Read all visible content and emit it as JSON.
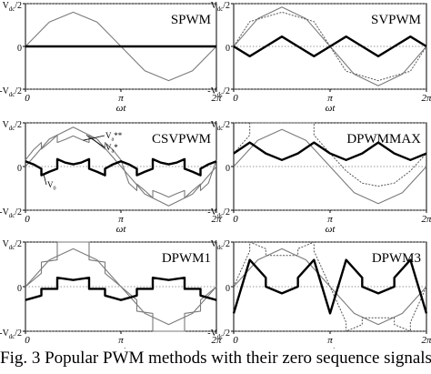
{
  "caption": "Fig. 3 Popular PWM methods with their zero sequence signals.",
  "chart_data": [
    {
      "type": "line",
      "title": "SPWM",
      "xlabel": "ωt",
      "x_ticks": [
        "0",
        "π",
        "2π"
      ],
      "y_ticks": [
        "V_dc/2",
        "0",
        "-V_dc/2"
      ],
      "xlim": [
        0,
        6.2832
      ],
      "ylim": [
        -1,
        1
      ],
      "series": [
        {
          "role": "modulation",
          "style": "thin-gray",
          "x": [
            0,
            0.785,
            1.571,
            2.356,
            3.142,
            3.927,
            4.712,
            5.498,
            6.283
          ],
          "y": [
            0,
            0.57,
            0.8,
            0.57,
            0,
            -0.57,
            -0.8,
            -0.57,
            0
          ]
        },
        {
          "role": "zero-sequence",
          "style": "bold",
          "x": [
            0,
            6.283
          ],
          "y": [
            0,
            0
          ]
        }
      ]
    },
    {
      "type": "line",
      "title": "SVPWM",
      "xlabel": "ωt",
      "x_ticks": [
        "0",
        "π",
        "2π"
      ],
      "y_ticks": [
        "V_dc/2",
        "0",
        "-V_dc/2"
      ],
      "xlim": [
        0,
        6.2832
      ],
      "ylim": [
        -1,
        1
      ],
      "series": [
        {
          "role": "reference",
          "style": "thin-gray",
          "x": [
            0,
            0.785,
            1.571,
            2.356,
            3.142,
            3.927,
            4.712,
            5.498,
            6.283
          ],
          "y": [
            0,
            0.65,
            0.92,
            0.65,
            0,
            -0.65,
            -0.92,
            -0.65,
            0
          ]
        },
        {
          "role": "modulation",
          "style": "dotted-gray",
          "x": [
            0,
            0.524,
            1.047,
            1.571,
            2.094,
            2.618,
            3.142,
            3.665,
            4.189,
            4.712,
            5.236,
            5.76,
            6.283
          ],
          "y": [
            0,
            0.58,
            0.69,
            0.8,
            0.69,
            0.58,
            0,
            -0.58,
            -0.69,
            -0.8,
            -0.69,
            -0.58,
            0
          ]
        },
        {
          "role": "zero-sequence",
          "style": "bold",
          "x": [
            0,
            0.524,
            1.047,
            1.571,
            2.094,
            2.618,
            3.142,
            3.665,
            4.189,
            4.712,
            5.236,
            5.76,
            6.283
          ],
          "y": [
            0,
            -0.23,
            0,
            0.23,
            0,
            -0.23,
            0,
            0.23,
            0,
            -0.23,
            0,
            0.23,
            0
          ]
        }
      ]
    },
    {
      "type": "line",
      "title": "CSVPWM",
      "xlabel": "ωt",
      "x_ticks": [
        "0",
        "π",
        "2π"
      ],
      "y_ticks": [
        "V_dc/2",
        "0",
        "-V_dc/2"
      ],
      "xlim": [
        0,
        6.2832
      ],
      "ylim": [
        -1,
        1
      ],
      "annotations": [
        "V_a**",
        "V_a*",
        "V_0"
      ],
      "series": [
        {
          "role": "V_a*",
          "style": "thin-gray",
          "x": [
            0,
            0.785,
            1.571,
            2.356,
            3.142,
            3.927,
            4.712,
            5.498,
            6.283
          ],
          "y": [
            0,
            0.63,
            0.9,
            0.63,
            0,
            -0.63,
            -0.9,
            -0.63,
            0
          ]
        },
        {
          "role": "V_a**",
          "style": "thin-gray",
          "x": [
            0,
            0.262,
            0.524,
            0.524,
            0.785,
            1.047,
            1.047,
            1.309,
            1.571,
            1.833,
            2.094,
            2.094,
            2.356,
            2.618,
            2.618,
            2.88,
            3.142,
            3.403,
            3.665,
            3.665,
            3.927,
            4.189,
            4.189,
            4.451,
            4.712,
            4.974,
            5.236,
            5.236,
            5.498,
            5.76,
            5.76,
            6.021,
            6.283
          ],
          "y": [
            0.15,
            0.38,
            0.55,
            0.4,
            0.55,
            0.72,
            0.55,
            0.62,
            0.7,
            0.62,
            0.55,
            0.72,
            0.55,
            0.4,
            0.55,
            0.38,
            0.15,
            -0.38,
            -0.55,
            -0.4,
            -0.55,
            -0.72,
            -0.55,
            -0.62,
            -0.7,
            -0.62,
            -0.55,
            -0.72,
            -0.55,
            -0.4,
            -0.55,
            -0.38,
            0.15
          ]
        },
        {
          "role": "V_0",
          "style": "bold",
          "x": [
            0,
            0.262,
            0.524,
            0.524,
            0.785,
            1.047,
            1.047,
            1.309,
            1.571,
            1.833,
            2.094,
            2.094,
            2.356,
            2.618,
            2.618,
            2.88,
            3.142,
            3.403,
            3.665,
            3.665,
            3.927,
            4.189,
            4.189,
            4.451,
            4.712,
            4.974,
            5.236,
            5.236,
            5.498,
            5.76,
            5.76,
            6.021,
            6.283
          ],
          "y": [
            0.12,
            0.05,
            -0.05,
            -0.2,
            -0.12,
            -0.05,
            0.17,
            0.09,
            0.05,
            0.09,
            0.17,
            -0.05,
            -0.12,
            -0.2,
            -0.05,
            0.05,
            0.12,
            0.05,
            -0.05,
            -0.2,
            -0.12,
            -0.05,
            0.17,
            0.09,
            0.05,
            0.09,
            0.17,
            -0.05,
            -0.12,
            -0.2,
            -0.05,
            0.05,
            0.12
          ]
        }
      ]
    },
    {
      "type": "line",
      "title": "DPWMMAX",
      "xlabel": "ωt",
      "x_ticks": [
        "0",
        "π",
        "2π"
      ],
      "y_ticks": [
        "V_dc/2",
        "0",
        "-V_dc/2"
      ],
      "xlim": [
        0,
        6.2832
      ],
      "ylim": [
        -1,
        1
      ],
      "series": [
        {
          "role": "reference",
          "style": "thin-gray",
          "x": [
            0,
            0.785,
            1.571,
            2.356,
            3.142,
            3.927,
            4.712,
            5.498,
            6.283
          ],
          "y": [
            0,
            0.6,
            0.85,
            0.6,
            0,
            -0.6,
            -0.85,
            -0.6,
            0
          ]
        },
        {
          "role": "modulation",
          "style": "dotted-gray",
          "x": [
            0,
            0.524,
            0.524,
            2.618,
            2.618,
            3.142,
            3.665,
            4.189,
            4.712,
            5.236,
            5.76,
            6.283
          ],
          "y": [
            0.3,
            0.72,
            1,
            1,
            0.72,
            0.3,
            -0.1,
            -0.38,
            -0.45,
            -0.38,
            -0.1,
            0.3
          ]
        },
        {
          "role": "zero-sequence",
          "style": "bold",
          "x": [
            0,
            0.524,
            1.047,
            1.571,
            2.094,
            2.618,
            3.142,
            3.665,
            4.189,
            4.712,
            5.236,
            5.76,
            6.283
          ],
          "y": [
            0.3,
            0.55,
            0.3,
            0.15,
            0.3,
            0.55,
            0.3,
            0.15,
            0.3,
            0.55,
            0.3,
            0.15,
            0.3
          ]
        }
      ]
    },
    {
      "type": "line",
      "title": "DPWM1",
      "xlabel": "ωt",
      "x_ticks": [
        "0",
        "π",
        "2π"
      ],
      "y_ticks": [
        "V_dc/2",
        "0",
        "-V_dc/2"
      ],
      "xlim": [
        0,
        6.2832
      ],
      "ylim": [
        -1,
        1
      ],
      "series": [
        {
          "role": "reference",
          "style": "thin-gray",
          "x": [
            0,
            0.785,
            1.571,
            2.356,
            3.142,
            3.927,
            4.712,
            5.498,
            6.283
          ],
          "y": [
            0,
            0.6,
            0.85,
            0.6,
            0,
            -0.6,
            -0.85,
            -0.6,
            0
          ]
        },
        {
          "role": "modulation",
          "style": "thin-gray",
          "x": [
            0,
            0.524,
            0.524,
            1.047,
            1.047,
            2.094,
            2.094,
            2.618,
            2.618,
            3.142,
            3.665,
            3.665,
            4.189,
            4.189,
            5.236,
            5.236,
            5.76,
            5.76,
            6.283
          ],
          "y": [
            0,
            0.3,
            0.55,
            0.6,
            1,
            1,
            0.6,
            0.55,
            0.3,
            0,
            -0.3,
            -0.55,
            -0.6,
            -1,
            -1,
            -0.6,
            -0.55,
            -0.3,
            0
          ]
        },
        {
          "role": "zero-sequence",
          "style": "bold",
          "x": [
            0,
            0.524,
            0.524,
            1.047,
            1.047,
            1.571,
            2.094,
            2.094,
            2.618,
            2.618,
            3.142,
            3.665,
            3.665,
            4.189,
            4.189,
            4.712,
            5.236,
            5.236,
            5.76,
            5.76,
            6.283
          ],
          "y": [
            -0.3,
            -0.2,
            -0.05,
            -0.05,
            0.2,
            0.15,
            0.2,
            -0.05,
            -0.05,
            -0.2,
            -0.3,
            -0.2,
            -0.05,
            -0.05,
            0.2,
            0.15,
            0.2,
            -0.05,
            -0.05,
            -0.2,
            -0.3
          ]
        }
      ]
    },
    {
      "type": "line",
      "title": "DPWM3",
      "xlabel": "ωt",
      "x_ticks": [
        "0",
        "π",
        "2π"
      ],
      "y_ticks": [
        "V_dc/2",
        "0",
        "-V_dc/2"
      ],
      "xlim": [
        0,
        6.2832
      ],
      "ylim": [
        -1,
        1
      ],
      "series": [
        {
          "role": "reference",
          "style": "thin-gray",
          "x": [
            0,
            0.785,
            1.571,
            2.356,
            3.142,
            3.927,
            4.712,
            5.498,
            6.283
          ],
          "y": [
            0,
            0.6,
            0.85,
            0.6,
            0,
            -0.6,
            -0.85,
            -0.6,
            0
          ]
        },
        {
          "role": "modulation",
          "style": "dotted-gray",
          "x": [
            0,
            0.524,
            0.524,
            1.047,
            1.047,
            2.094,
            2.094,
            2.618,
            2.618,
            3.142,
            3.665,
            3.665,
            4.189,
            4.189,
            5.236,
            5.236,
            5.76,
            5.76,
            6.283
          ],
          "y": [
            0,
            0.8,
            1,
            0.85,
            0.7,
            0.7,
            0.85,
            1,
            0.8,
            0,
            -0.8,
            -1,
            -0.85,
            -0.7,
            -0.7,
            -0.85,
            -1,
            -0.8,
            0
          ]
        },
        {
          "role": "zero-sequence",
          "style": "bold",
          "x": [
            0,
            0.524,
            1.047,
            1.047,
            1.571,
            2.094,
            2.094,
            2.618,
            3.142,
            3.665,
            4.189,
            4.189,
            4.712,
            5.236,
            5.236,
            5.76,
            6.283
          ],
          "y": [
            -0.6,
            0.6,
            0.2,
            0,
            -0.15,
            0,
            0.2,
            0.6,
            -0.6,
            0.6,
            0.2,
            0,
            -0.15,
            0,
            0.2,
            0.6,
            -0.6
          ]
        }
      ]
    }
  ]
}
